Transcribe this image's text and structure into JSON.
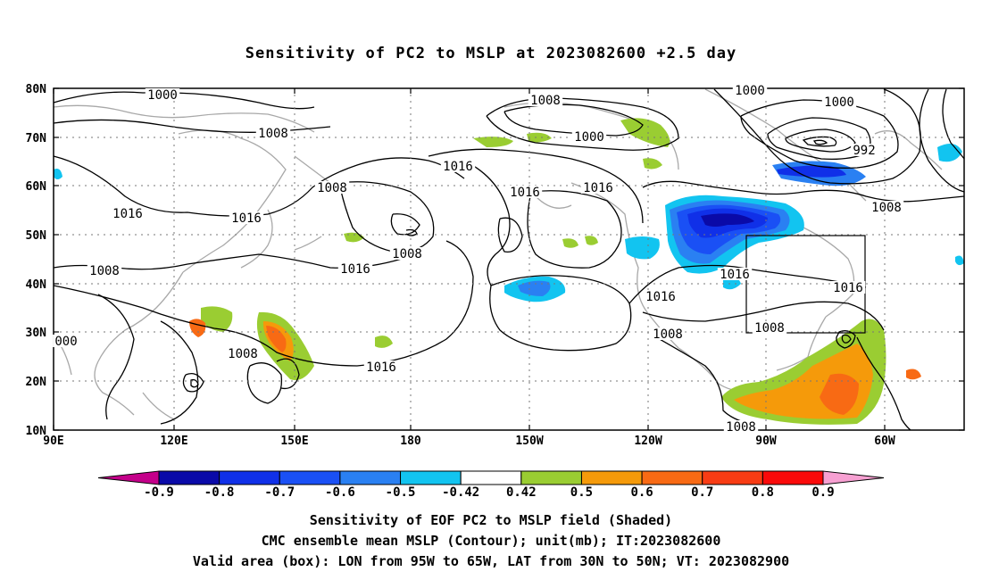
{
  "title": "Sensitivity of PC2 to MSLP at 2023082600 +2.5 day",
  "lat_labels": [
    "80N",
    "70N",
    "60N",
    "50N",
    "40N",
    "30N",
    "20N",
    "10N"
  ],
  "lon_labels": [
    "90E",
    "120E",
    "150E",
    "180",
    "150W",
    "120W",
    "90W",
    "60W"
  ],
  "contour_labels": [
    "1000",
    "1008",
    "1016",
    "1016",
    "1008",
    "1016",
    "1008",
    "1016",
    "1008",
    "1016",
    "1008",
    "1000",
    "1016",
    "1016",
    "1016",
    "1008",
    "1008",
    "1016",
    "1000",
    "992",
    "1000",
    "1008",
    "1016",
    "1008",
    "1008",
    "000"
  ],
  "colorbar": {
    "labels": [
      "-0.9",
      "-0.8",
      "-0.7",
      "-0.6",
      "-0.5",
      "-0.42",
      "0.42",
      "0.5",
      "0.6",
      "0.7",
      "0.8",
      "0.9"
    ],
    "colors": [
      "#c4008a",
      "#0a0aa8",
      "#1030e8",
      "#1a50f5",
      "#2a80f2",
      "#12c4f0",
      "#ffffff",
      "#9acd32",
      "#f59a0a",
      "#f86a14",
      "#f83c14",
      "#fa0a0a",
      "#f7a0d2"
    ]
  },
  "valid_box": {
    "lon_min": "95W",
    "lon_max": "65W",
    "lat_min": "30N",
    "lat_max": "50N"
  },
  "captions": {
    "line1": "Sensitivity of EOF PC2 to MSLP field (Shaded)",
    "line2": "CMC ensemble mean MSLP (Contour); unit(mb); IT:2023082600",
    "line3": "Valid area (box): LON from 95W to 65W, LAT from 30N to 50N; VT: 2023082900"
  }
}
